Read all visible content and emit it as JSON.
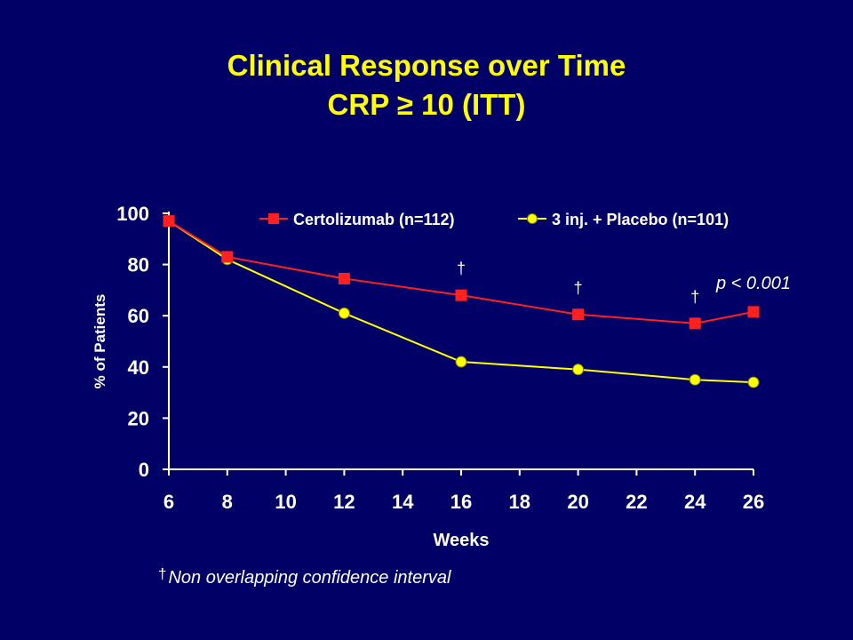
{
  "title": {
    "line1": "Clinical Response over Time",
    "line2_prefix": "CRP",
    "line2_symbol": "≥",
    "line2_suffix": "10 (ITT)"
  },
  "colors": {
    "background": "#000066",
    "title": "#ffff00",
    "series_red": "#ff2020",
    "series_yellow": "#ffff00",
    "axis": "#ffffff"
  },
  "chart_data": {
    "type": "line",
    "xlabel": "Weeks",
    "ylabel": "% of Patients",
    "xlim": [
      6,
      26
    ],
    "ylim": [
      0,
      100
    ],
    "xticks": [
      "6",
      "8",
      "10",
      "12",
      "14",
      "16",
      "18",
      "20",
      "22",
      "24",
      "26"
    ],
    "yticks": [
      "0",
      "20",
      "40",
      "60",
      "80",
      "100"
    ],
    "legend_position": "top",
    "series": [
      {
        "name": "Certolizumab (n=112)",
        "marker": "square",
        "color": "#ff2020",
        "x": [
          6,
          8,
          12,
          16,
          20,
          24,
          26
        ],
        "y": [
          97,
          83,
          74.5,
          68,
          60.5,
          57,
          61.5
        ]
      },
      {
        "name": "3 inj. + Placebo (n=101)",
        "marker": "circle",
        "color": "#ffff00",
        "x": [
          6,
          8,
          12,
          16,
          20,
          24,
          26
        ],
        "y": [
          97,
          82,
          61,
          42,
          39,
          35,
          34
        ]
      }
    ],
    "annotations": [
      {
        "text": "†",
        "x": 16
      },
      {
        "text": "†",
        "x": 20
      },
      {
        "text": "†",
        "x": 24
      },
      {
        "text": "p < 0.001",
        "style": "italic"
      }
    ]
  },
  "footnote": {
    "symbol": "†",
    "text": "Non overlapping confidence interval"
  }
}
